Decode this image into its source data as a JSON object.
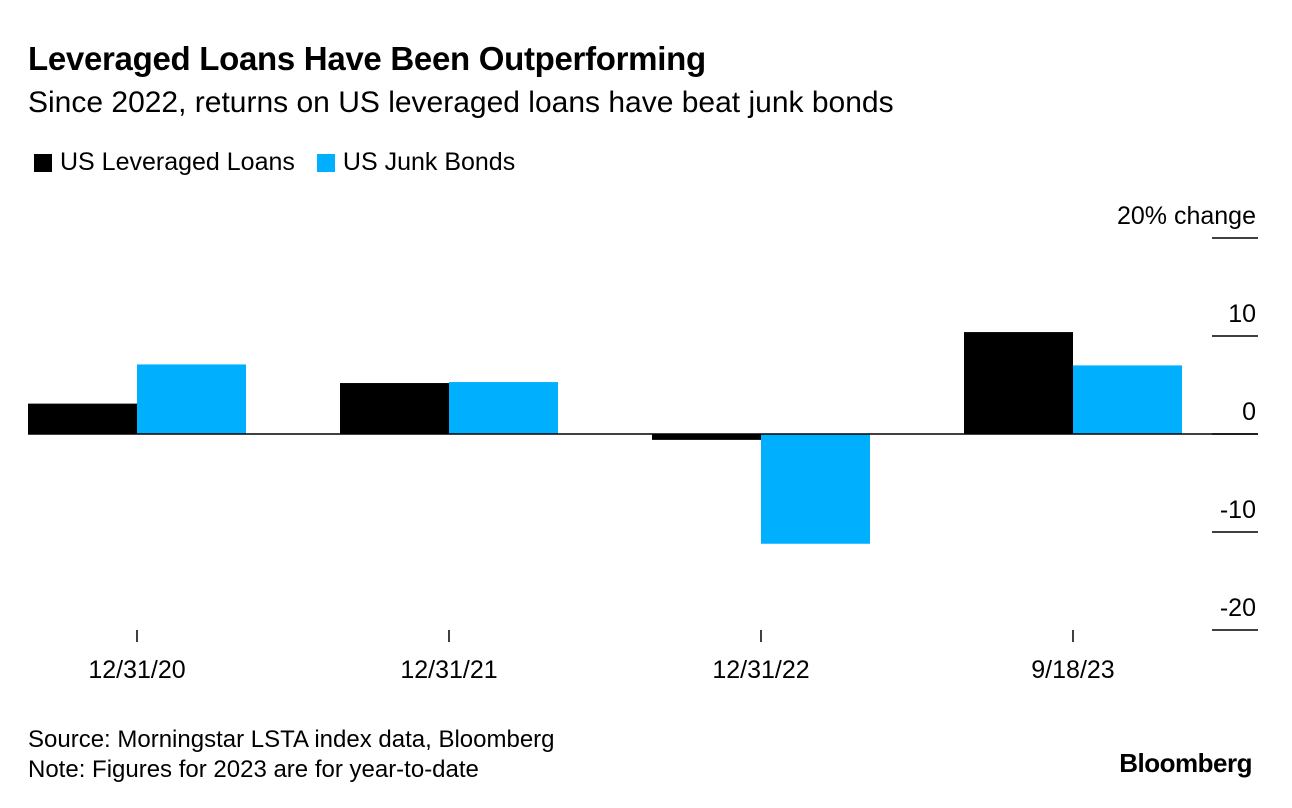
{
  "header": {
    "title": "Leveraged Loans Have Been Outperforming",
    "subtitle": "Since 2022, returns on US leveraged loans have beat junk bonds"
  },
  "footer": {
    "source": "Source: Morningstar LSTA index data, Bloomberg",
    "note": "Note: Figures for 2023 are for year-to-date",
    "brand": "Bloomberg"
  },
  "chart_data": {
    "type": "bar",
    "title": "Leveraged Loans Have Been Outperforming",
    "subtitle": "Since 2022, returns on US leveraged loans have beat junk bonds",
    "categories": [
      "12/31/20",
      "12/31/21",
      "12/31/22",
      "9/18/23"
    ],
    "series": [
      {
        "name": "US Leveraged Loans",
        "color": "#000000",
        "values": [
          3.1,
          5.2,
          -0.6,
          10.4
        ]
      },
      {
        "name": "US Junk Bonds",
        "color": "#00b0ff",
        "values": [
          7.1,
          5.3,
          -11.2,
          7.0
        ]
      }
    ],
    "ylim": [
      -20,
      20
    ],
    "yticks": [
      20,
      10,
      0,
      -10,
      -20
    ],
    "ytick_labels": [
      "20% change",
      "10",
      "0",
      "-10",
      "-20"
    ],
    "xlabel": "",
    "ylabel": "",
    "legend_position": "top-left",
    "axis_side": "right"
  }
}
